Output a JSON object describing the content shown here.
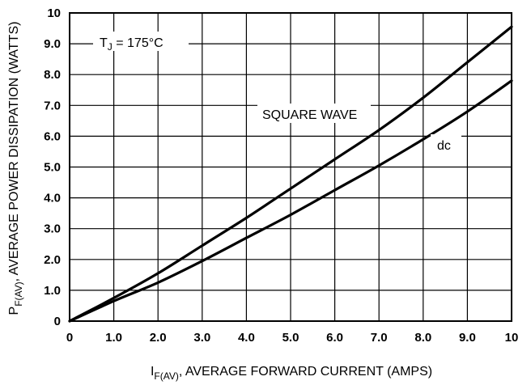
{
  "chart_data": {
    "type": "line",
    "xlabel": {
      "main": "I",
      "sub": "F(AV)",
      "rest": ", AVERAGE FORWARD CURRENT (AMPS)"
    },
    "ylabel": {
      "main": "P",
      "sub": "F(AV)",
      "rest": ", AVERAGE POWER DISSIPATION (WATTS)"
    },
    "xlim": [
      0,
      10
    ],
    "ylim": [
      0,
      10
    ],
    "grid": true,
    "x_ticks": [
      {
        "value": 0,
        "label": "0"
      },
      {
        "value": 1,
        "label": "1.0"
      },
      {
        "value": 2,
        "label": "2.0"
      },
      {
        "value": 3,
        "label": "3.0"
      },
      {
        "value": 4,
        "label": "4.0"
      },
      {
        "value": 5,
        "label": "5.0"
      },
      {
        "value": 6,
        "label": "6.0"
      },
      {
        "value": 7,
        "label": "7.0"
      },
      {
        "value": 8,
        "label": "8.0"
      },
      {
        "value": 9,
        "label": "9.0"
      },
      {
        "value": 10,
        "label": "10"
      }
    ],
    "y_ticks": [
      {
        "value": 0,
        "label": "0"
      },
      {
        "value": 1,
        "label": "1.0"
      },
      {
        "value": 2,
        "label": "2.0"
      },
      {
        "value": 3,
        "label": "3.0"
      },
      {
        "value": 4,
        "label": "4.0"
      },
      {
        "value": 5,
        "label": "5.0"
      },
      {
        "value": 6,
        "label": "6.0"
      },
      {
        "value": 7,
        "label": "7.0"
      },
      {
        "value": 8,
        "label": "8.0"
      },
      {
        "value": 9,
        "label": "9.0"
      },
      {
        "value": 10,
        "label": "10"
      }
    ],
    "series": [
      {
        "name": "SQUARE WAVE",
        "x": [
          0,
          1,
          2,
          3,
          4,
          5,
          6,
          7,
          8,
          9,
          10
        ],
        "y": [
          0,
          0.75,
          1.55,
          2.45,
          3.35,
          4.3,
          5.25,
          6.2,
          7.25,
          8.4,
          9.55
        ]
      },
      {
        "name": "dc",
        "x": [
          0,
          1,
          2,
          3,
          4,
          5,
          6,
          7,
          8,
          9,
          10
        ],
        "y": [
          0,
          0.65,
          1.25,
          1.95,
          2.7,
          3.45,
          4.25,
          5.05,
          5.9,
          6.8,
          7.8
        ]
      }
    ],
    "annotations": [
      {
        "id": "tj",
        "main": "T",
        "sub": "J",
        "rest": " = 175°C"
      }
    ]
  }
}
